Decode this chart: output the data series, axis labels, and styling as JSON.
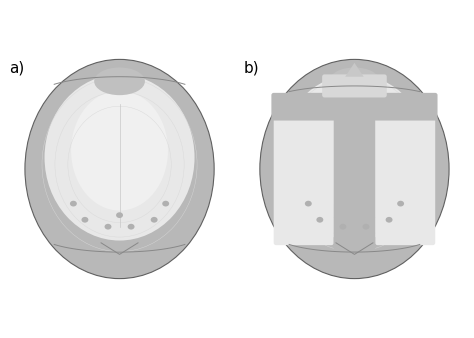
{
  "fig_width": 4.74,
  "fig_height": 3.38,
  "dpi": 100,
  "background_color": "#ffffff",
  "label_a": "a)",
  "label_b": "b)",
  "label_fontsize": 11,
  "label_color": "#000000",
  "skull_bg_color": "#b8b8b8",
  "skull_light_color": "#e8e8e8",
  "skull_mid_color": "#d0d0d0",
  "skull_dark_color": "#909090",
  "cut_color": "#a0a0a0",
  "cut_light": "#c8c8c8"
}
